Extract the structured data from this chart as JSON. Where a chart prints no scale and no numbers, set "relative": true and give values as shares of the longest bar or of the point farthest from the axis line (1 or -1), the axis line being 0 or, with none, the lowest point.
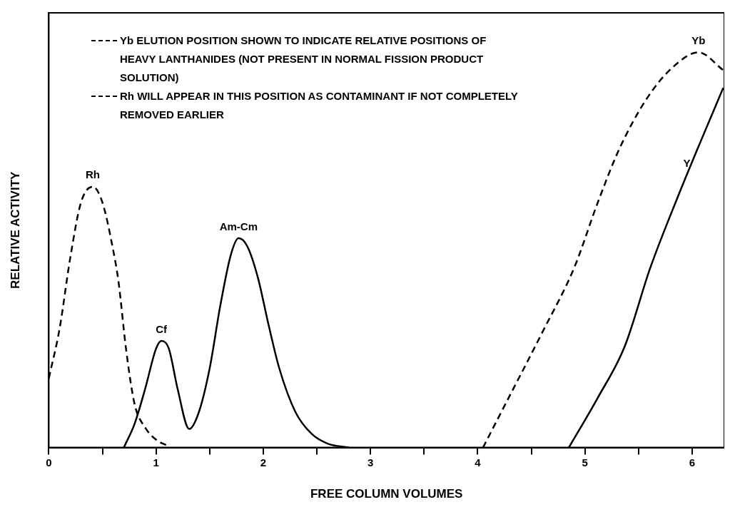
{
  "chart_data": {
    "type": "line",
    "relative": true,
    "xlabel": "FREE COLUMN VOLUMES",
    "ylabel": "RELATIVE ACTIVITY",
    "xlim": [
      0,
      6.3
    ],
    "xticks": [
      0,
      {
        "value": 0.5,
        "label": null
      },
      1,
      {
        "value": 1.5,
        "label": null
      },
      2,
      {
        "value": 2.5,
        "label": null
      },
      3,
      {
        "value": 3.5,
        "label": null
      },
      4,
      {
        "value": 4.5,
        "label": null
      },
      5,
      {
        "value": 5.5,
        "label": null
      },
      6
    ],
    "legend": "top left",
    "grid": false,
    "marker": "none",
    "series": [
      {
        "name": "Yb ELUTION POSITION SHOWN TO INDICATE RELATIVE POSITIONS OF HEAVY LANTHANIDES (NOT PRESENT IN NORMAL FISSION PRODUCT SOLUTION)",
        "color": "#000000",
        "line_style": "dashed",
        "x": [
          4.05,
          4.19,
          4.6,
          4.9,
          5.12,
          5.32,
          5.57,
          5.81,
          6.06,
          6.29
        ],
        "values": [
          0,
          0.074,
          0.29,
          0.455,
          0.62,
          0.755,
          0.88,
          0.96,
          1,
          0.955
        ]
      },
      {
        "name": "Rh WILL APPEAR IN THIS POSITION AS CONTAMINANT IF NOT COMPLETELY REMOVED EARLIER",
        "color": "#000000",
        "line_style": "dashed",
        "x": [
          0,
          0.1,
          0.2,
          0.3,
          0.41,
          0.5,
          0.6,
          0.65,
          0.72,
          0.8,
          0.9,
          1.0,
          1.12
        ],
        "values": [
          0.175,
          0.3,
          0.48,
          0.62,
          0.66,
          0.62,
          0.5,
          0.42,
          0.25,
          0.11,
          0.05,
          0.02,
          0.003
        ]
      },
      {
        "color": "#000000",
        "line_style": "solid",
        "x": [
          0.7,
          0.8,
          0.9,
          1.0,
          1.05,
          1.12,
          1.2,
          1.31,
          1.4,
          1.5,
          1.6,
          1.7,
          1.77,
          1.85,
          1.95,
          2.05,
          2.15,
          2.3,
          2.45,
          2.6,
          2.8
        ],
        "values": [
          0,
          0.06,
          0.15,
          0.25,
          0.27,
          0.25,
          0.15,
          0.047,
          0.09,
          0.2,
          0.36,
          0.49,
          0.53,
          0.51,
          0.43,
          0.31,
          0.2,
          0.09,
          0.035,
          0.01,
          0
        ]
      },
      {
        "color": "#000000",
        "line_style": "solid",
        "x": [
          4.85,
          5.12,
          5.37,
          5.61,
          5.86,
          6.08,
          6.29
        ],
        "values": [
          0,
          0.126,
          0.255,
          0.455,
          0.63,
          0.775,
          0.91
        ]
      }
    ],
    "annotations": [
      {
        "text": "Rh",
        "x": 0.41,
        "y": 0.66
      },
      {
        "text": "Cf",
        "x": 1.05,
        "y": 0.27
      },
      {
        "text": "Am-Cm",
        "x": 1.77,
        "y": 0.53
      },
      {
        "text": "Yb",
        "x": 6.06,
        "y": 1
      },
      {
        "text": "Y",
        "x": 5.95,
        "y": 0.69
      }
    ]
  }
}
